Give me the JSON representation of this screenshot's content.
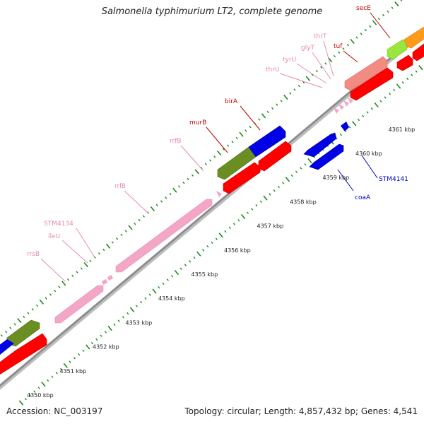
{
  "title": "Salmonella typhimurium LT2, complete genome",
  "footer": {
    "accession": "Accession: NC_003197",
    "summary": "Topology: circular; Length: 4,857,432 bp; Genes: 4,541"
  },
  "colors": {
    "rna": "#f4a6c6",
    "rna_label": "#e889b4",
    "forward_gene": "#ff0000",
    "forward_label": "#c00000",
    "reverse_gene": "#0000e6",
    "reverse_label": "#0000cc",
    "ruler": "#8c8c8c",
    "tick": "#1a8a1a",
    "olive": "#6b8e23",
    "salmon": "#f28b82",
    "lime": "#9be63c",
    "orange": "#ff9b1a"
  },
  "axis": {
    "ticks": [
      {
        "kbp": 4350,
        "label": "4350 kbp"
      },
      {
        "kbp": 4351,
        "label": "4351 kbp"
      },
      {
        "kbp": 4352,
        "label": "4352 kbp"
      },
      {
        "kbp": 4353,
        "label": "4353 kbp"
      },
      {
        "kbp": 4354,
        "label": "4354 kbp"
      },
      {
        "kbp": 4355,
        "label": "4355 kbp"
      },
      {
        "kbp": 4356,
        "label": "4356 kbp"
      },
      {
        "kbp": 4357,
        "label": "4357 kbp"
      },
      {
        "kbp": 4358,
        "label": "4358 kbp"
      },
      {
        "kbp": 4359,
        "label": "4359 kbp"
      },
      {
        "kbp": 4360,
        "label": "4360 kbp"
      },
      {
        "kbp": 4361,
        "label": "4361 kbp"
      }
    ]
  },
  "labels": {
    "rrsB": "rrsB",
    "ileU": "ileU",
    "STM4134": "STM4134",
    "rrlB": "rrlB",
    "rrfB": "rrfB",
    "murB": "murB",
    "birA": "birA",
    "thrU": "thrU",
    "tyrU": "tyrU",
    "glyT": "glyT",
    "thrT": "thrT",
    "tuf": "tuf",
    "secE": "secE",
    "coaA": "coaA",
    "STM4141": "STM4141"
  }
}
